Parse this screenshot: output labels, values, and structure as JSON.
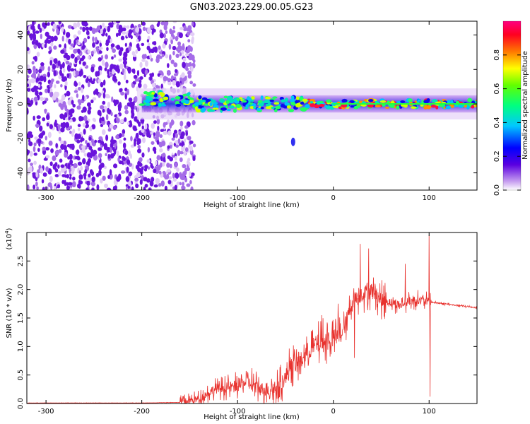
{
  "title": "GN03.2023.229.00.05.G23",
  "colors": {
    "snr_line": "#e8322e",
    "spectrum_faint": "#d9b8f0",
    "spectrum_base": "#7f1fe0",
    "spectrum_core": "#2f2fe8"
  },
  "chart_data": [
    {
      "type": "heatmap",
      "title": "GN03.2023.229.00.05.G23",
      "xlabel": "Height of straight line (km)",
      "ylabel": "Frequency (Hz)",
      "xlim": [
        -320,
        150
      ],
      "ylim": [
        -50,
        48
      ],
      "x_ticks": [
        -300,
        -200,
        -100,
        0,
        100
      ],
      "y_ticks": [
        -40,
        -20,
        0,
        20,
        40
      ],
      "x_tick_labels": [
        "-300",
        "-200",
        "-100",
        "0",
        "100"
      ],
      "y_tick_labels": [
        "-40",
        "-20",
        "0",
        "20",
        "40"
      ],
      "colorbar": {
        "label": "Normalized spectral amplitude",
        "range": [
          0.0,
          1.0
        ],
        "ticks": [
          0.0,
          0.2,
          0.4,
          0.6,
          0.8
        ],
        "tick_labels": [
          "0.0",
          "0.2",
          "0.4",
          "0.6",
          "0.8"
        ],
        "colormap": "rainbow (white-violet-blue-cyan-green-yellow-red-magenta)"
      },
      "features": {
        "noise_region_x": [
          -320,
          -160
        ],
        "signal_band_center_hz": 0,
        "signal_start_x": -200,
        "isolated_blob": {
          "x": -42,
          "y": -22
        }
      }
    },
    {
      "type": "line",
      "xlabel": "Height of straight line (km)",
      "ylabel": "SNR (10 * v/v)",
      "y_multiplier": "(x10^4)",
      "xlim": [
        -320,
        150
      ],
      "ylim": [
        0,
        3.0
      ],
      "x_ticks": [
        -300,
        -200,
        -100,
        0,
        100
      ],
      "y_ticks": [
        0.0,
        0.5,
        1.0,
        1.5,
        2.0,
        2.5
      ],
      "x_tick_labels": [
        "-300",
        "-200",
        "-100",
        "0",
        "100"
      ],
      "y_tick_labels": [
        "0.0",
        "0.5",
        "1.0",
        "1.5",
        "2.0",
        "2.5"
      ],
      "series": [
        {
          "x": [
            -320,
            -250,
            -200,
            -160,
            -140,
            -125,
            -110,
            -100,
            -90,
            -75,
            -60,
            -50,
            -45,
            -35,
            -25,
            -15,
            0,
            10,
            20,
            30,
            40,
            50,
            60,
            70,
            80,
            90,
            95,
            100,
            102,
            110,
            120,
            130,
            150
          ],
          "y": [
            0.01,
            0.01,
            0.01,
            0.02,
            0.08,
            0.25,
            0.28,
            0.32,
            0.38,
            0.25,
            0.25,
            0.45,
            0.65,
            0.72,
            0.95,
            1.05,
            1.15,
            1.25,
            1.8,
            1.92,
            1.98,
            1.82,
            1.78,
            1.72,
            1.8,
            1.82,
            1.8,
            1.78,
            1.78,
            1.76,
            1.74,
            1.72,
            1.68
          ],
          "spikes": [
            {
              "x": 28,
              "y": 2.8
            },
            {
              "x": 37,
              "y": 2.72
            },
            {
              "x": 75,
              "y": 2.45
            },
            {
              "x": 100,
              "y": 2.95
            },
            {
              "x": 101,
              "y": 0.12
            },
            {
              "x": 22,
              "y": 0.8
            },
            {
              "x": 5,
              "y": 1.75
            },
            {
              "x": -12,
              "y": 1.55
            },
            {
              "x": -45,
              "y": 0.75
            },
            {
              "x": -85,
              "y": 0.62
            },
            {
              "x": -102,
              "y": 0.55
            }
          ]
        }
      ]
    }
  ]
}
